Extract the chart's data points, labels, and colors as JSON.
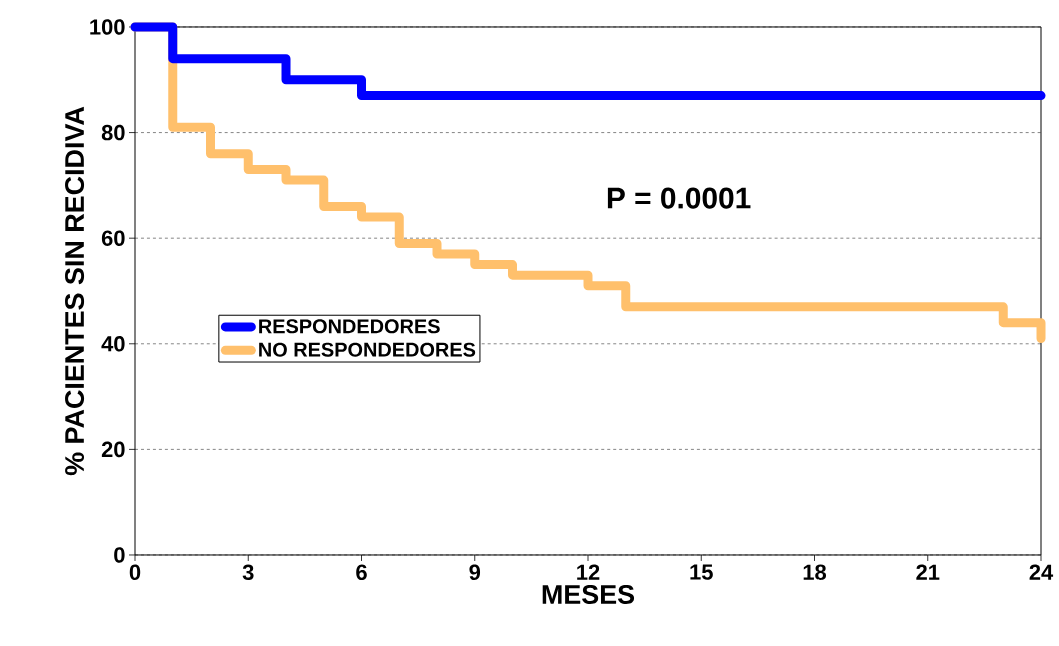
{
  "chart_data": {
    "type": "step",
    "xlabel": "MESES",
    "ylabel": "% PACIENTES SIN RECIDIVA",
    "xlim": [
      0,
      24
    ],
    "ylim": [
      0,
      100
    ],
    "xticks": [
      0,
      3,
      6,
      9,
      12,
      15,
      18,
      21,
      24
    ],
    "yticks": [
      0,
      20,
      40,
      60,
      80,
      100
    ],
    "grid": "y",
    "legend": "left",
    "line_style": "solid",
    "marker": "none",
    "annotations": [
      "P = 0.0001"
    ],
    "series": [
      {
        "name": "RESPONDEDORES",
        "color": "#0000ff",
        "x": [
          0,
          1,
          4,
          6,
          24
        ],
        "values": [
          100,
          94,
          90,
          87,
          87
        ]
      },
      {
        "name": "NO RESPONDEDORES",
        "color": "#ffc06c",
        "x": [
          0,
          1,
          2,
          3,
          4,
          5,
          6,
          7,
          8,
          9,
          10,
          12,
          13,
          23,
          24
        ],
        "values": [
          100,
          81,
          76,
          73,
          71,
          66,
          64,
          59,
          57,
          55,
          53,
          51,
          47,
          44,
          41
        ]
      }
    ]
  }
}
